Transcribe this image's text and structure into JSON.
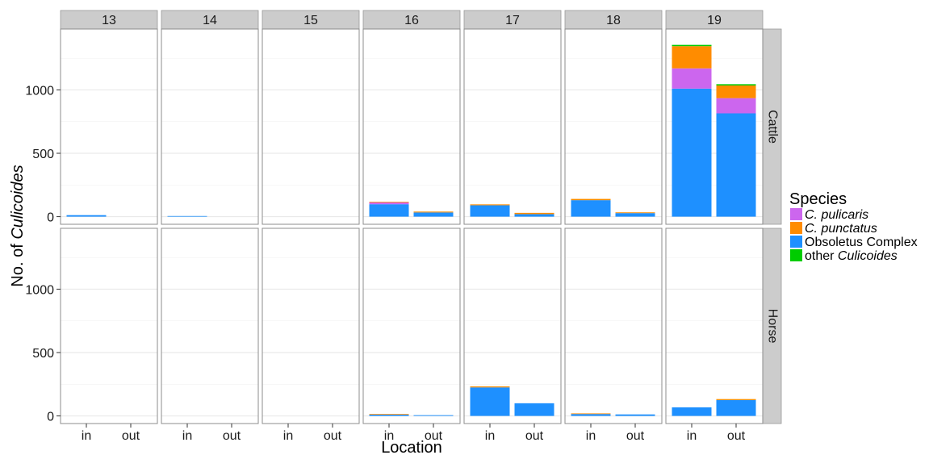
{
  "chart_data": {
    "type": "bar",
    "stacked": true,
    "facet_columns": [
      "13",
      "14",
      "15",
      "16",
      "17",
      "18",
      "19"
    ],
    "facet_rows": [
      "Cattle",
      "Horse"
    ],
    "categories": [
      "in",
      "out"
    ],
    "xlabel": "Location",
    "ylabel_prefix": "No. of ",
    "ylabel_italic": "Culicoides",
    "yticks": [
      0,
      500,
      1000
    ],
    "ylim": [
      -60,
      1480
    ],
    "grid": true,
    "legend": {
      "title": "Species",
      "placement": "right",
      "entries": [
        {
          "key": "pulicaris",
          "plain": "",
          "italic": "C. pulicaris",
          "color": "#CC66EE"
        },
        {
          "key": "punctatus",
          "plain": "",
          "italic": "C. punctatus",
          "color": "#FF8C00"
        },
        {
          "key": "obsoletus",
          "plain": "Obsoletus Complex",
          "italic": "",
          "color": "#1E90FF"
        },
        {
          "key": "other",
          "plain": "other ",
          "italic": "Culicoides",
          "color": "#00CC00"
        }
      ]
    },
    "stack_order": [
      "obsoletus",
      "pulicaris",
      "punctatus",
      "other"
    ],
    "data": {
      "Cattle": {
        "13": {
          "in": {
            "obsoletus": 12,
            "pulicaris": 0,
            "punctatus": 0,
            "other": 0
          },
          "out": null
        },
        "14": {
          "in": {
            "obsoletus": 5,
            "pulicaris": 0,
            "punctatus": 0,
            "other": 0
          },
          "out": null
        },
        "15": {
          "in": null,
          "out": null
        },
        "16": {
          "in": {
            "obsoletus": 98,
            "pulicaris": 15,
            "punctatus": 5,
            "other": 0
          },
          "out": {
            "obsoletus": 33,
            "pulicaris": 0,
            "punctatus": 7,
            "other": 0
          }
        },
        "17": {
          "in": {
            "obsoletus": 90,
            "pulicaris": 0,
            "punctatus": 7,
            "other": 0
          },
          "out": {
            "obsoletus": 20,
            "pulicaris": 0,
            "punctatus": 10,
            "other": 0
          }
        },
        "18": {
          "in": {
            "obsoletus": 130,
            "pulicaris": 0,
            "punctatus": 10,
            "other": 0
          },
          "out": {
            "obsoletus": 28,
            "pulicaris": 0,
            "punctatus": 6,
            "other": 0
          }
        },
        "19": {
          "in": {
            "obsoletus": 1010,
            "pulicaris": 160,
            "punctatus": 175,
            "other": 10
          },
          "out": {
            "obsoletus": 815,
            "pulicaris": 120,
            "punctatus": 100,
            "other": 10
          }
        }
      },
      "Horse": {
        "13": {
          "in": null,
          "out": null
        },
        "14": {
          "in": null,
          "out": null
        },
        "15": {
          "in": null,
          "out": null
        },
        "16": {
          "in": {
            "obsoletus": 12,
            "pulicaris": 0,
            "punctatus": 3,
            "other": 0
          },
          "out": {
            "obsoletus": 6,
            "pulicaris": 0,
            "punctatus": 0,
            "other": 0
          }
        },
        "17": {
          "in": {
            "obsoletus": 225,
            "pulicaris": 0,
            "punctatus": 8,
            "other": 0
          },
          "out": {
            "obsoletus": 100,
            "pulicaris": 0,
            "punctatus": 0,
            "other": 0
          }
        },
        "18": {
          "in": {
            "obsoletus": 15,
            "pulicaris": 0,
            "punctatus": 5,
            "other": 0
          },
          "out": {
            "obsoletus": 12,
            "pulicaris": 0,
            "punctatus": 0,
            "other": 0
          }
        },
        "19": {
          "in": {
            "obsoletus": 68,
            "pulicaris": 0,
            "punctatus": 0,
            "other": 0
          },
          "out": {
            "obsoletus": 125,
            "pulicaris": 0,
            "punctatus": 8,
            "other": 0
          }
        }
      }
    }
  }
}
